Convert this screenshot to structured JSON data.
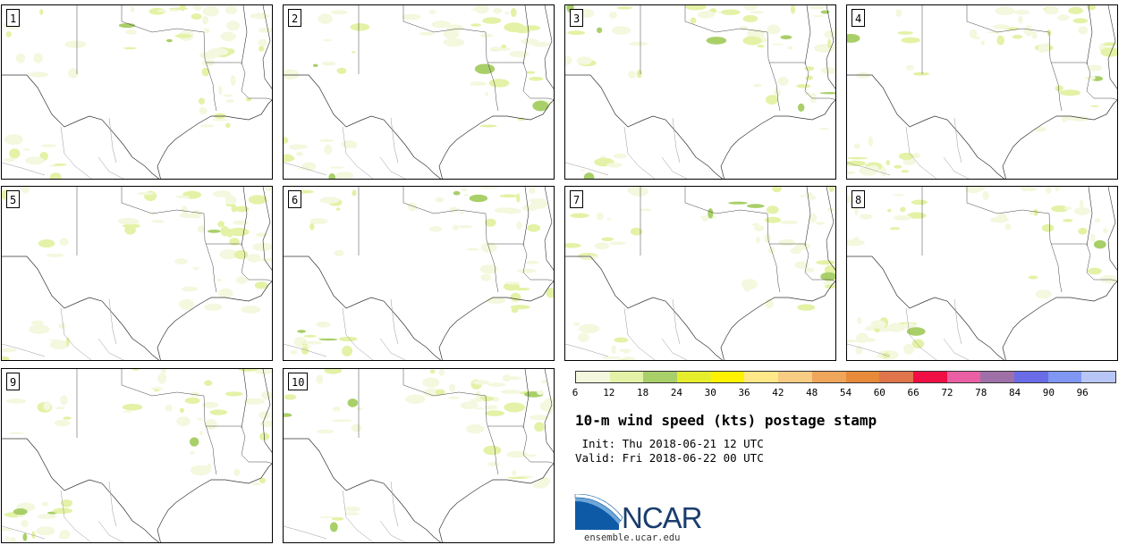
{
  "panels": [
    {
      "label": "1"
    },
    {
      "label": "2"
    },
    {
      "label": "3"
    },
    {
      "label": "4"
    },
    {
      "label": "5"
    },
    {
      "label": "6"
    },
    {
      "label": "7"
    },
    {
      "label": "8"
    },
    {
      "label": "9"
    },
    {
      "label": "10"
    }
  ],
  "colorbar": {
    "colors": [
      "#f3f8de",
      "#e3f2a6",
      "#a9cf69",
      "#e6ee2c",
      "#fff200",
      "#ffe887",
      "#f8cc82",
      "#efa55a",
      "#e88a3a",
      "#e0744a",
      "#ef0f45",
      "#ea5ea4",
      "#9f70a7",
      "#6a6ce7",
      "#7f96f2",
      "#b8c6f7"
    ],
    "ticks": [
      "6",
      "12",
      "18",
      "24",
      "30",
      "36",
      "42",
      "48",
      "54",
      "60",
      "66",
      "72",
      "78",
      "84",
      "90",
      "96"
    ]
  },
  "title": "10-m wind speed (kts) postage stamp",
  "init": " Init: Thu 2018-06-21 12 UTC",
  "valid": "Valid: Fri 2018-06-22 00 UTC",
  "logo": {
    "text": "NCAR",
    "url": "ensemble.ucar.edu"
  }
}
